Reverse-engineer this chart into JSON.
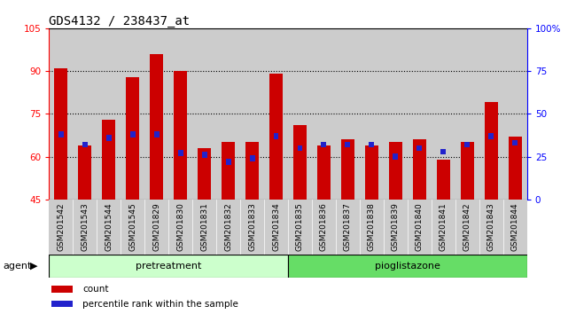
{
  "title": "GDS4132 / 238437_at",
  "categories": [
    "GSM201542",
    "GSM201543",
    "GSM201544",
    "GSM201545",
    "GSM201829",
    "GSM201830",
    "GSM201831",
    "GSM201832",
    "GSM201833",
    "GSM201834",
    "GSM201835",
    "GSM201836",
    "GSM201837",
    "GSM201838",
    "GSM201839",
    "GSM201840",
    "GSM201841",
    "GSM201842",
    "GSM201843",
    "GSM201844"
  ],
  "count_values": [
    91,
    64,
    73,
    88,
    96,
    90,
    63,
    65,
    65,
    89,
    71,
    64,
    66,
    64,
    65,
    66,
    59,
    65,
    79,
    67
  ],
  "percentile_values": [
    38,
    32,
    36,
    38,
    38,
    27,
    26,
    22,
    24,
    37,
    30,
    32,
    32,
    32,
    25,
    30,
    28,
    32,
    37,
    33
  ],
  "bar_color": "#cc0000",
  "percentile_color": "#2222cc",
  "ylim_left": [
    45,
    105
  ],
  "ylim_right": [
    0,
    100
  ],
  "yticks_left": [
    45,
    60,
    75,
    90,
    105
  ],
  "yticks_right": [
    0,
    25,
    50,
    75,
    100
  ],
  "ytick_labels_right": [
    "0",
    "25",
    "50",
    "75",
    "100%"
  ],
  "group1_label": "pretreatment",
  "group2_label": "pioglistazone",
  "group1_indices": [
    0,
    9
  ],
  "group2_indices": [
    10,
    19
  ],
  "group1_color": "#ccffcc",
  "group2_color": "#66dd66",
  "agent_label": "agent",
  "bar_width": 0.55,
  "dotted_grid_values": [
    60,
    75,
    90
  ],
  "legend_count": "count",
  "legend_percentile": "percentile rank within the sample",
  "title_fontsize": 10,
  "tick_fontsize": 6.5,
  "label_fontsize": 8,
  "col_bg_color": "#cccccc"
}
